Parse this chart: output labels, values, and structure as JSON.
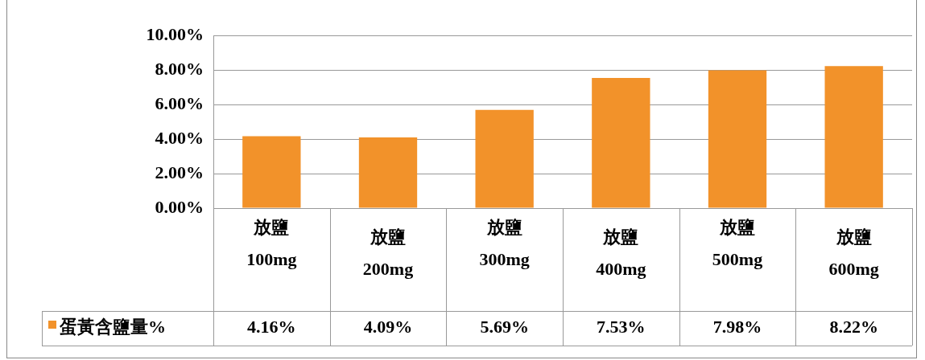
{
  "chart_data": {
    "type": "bar",
    "categories": [
      "放鹽 100mg",
      "放鹽 200mg",
      "放鹽 300mg",
      "放鹽 400mg",
      "放鹽 500mg",
      "放鹽 600mg"
    ],
    "series": [
      {
        "name": "蛋黃含鹽量%",
        "color": "#f2922a",
        "values": [
          4.16,
          4.09,
          5.69,
          7.53,
          7.98,
          8.22
        ],
        "value_labels": [
          "4.16%",
          "4.09%",
          "5.69%",
          "7.53%",
          "7.98%",
          "8.22%"
        ]
      }
    ],
    "ylim": [
      0,
      10
    ],
    "yticks": [
      {
        "value": 0,
        "label": "0.00%"
      },
      {
        "value": 2,
        "label": "2.00%"
      },
      {
        "value": 4,
        "label": "4.00%"
      },
      {
        "value": 6,
        "label": "6.00%"
      },
      {
        "value": 8,
        "label": "8.00%"
      },
      {
        "value": 10,
        "label": "10.00%"
      }
    ],
    "grid": "y",
    "legend": "bottom"
  }
}
